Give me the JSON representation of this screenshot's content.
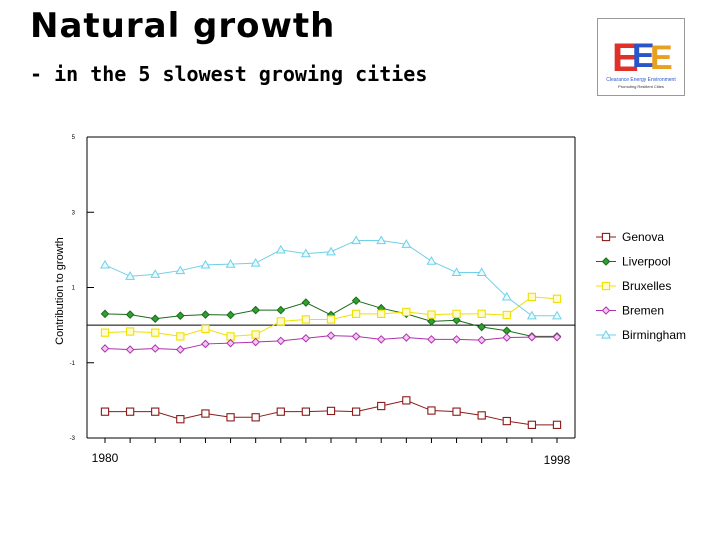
{
  "header": {
    "title": "Natural growth",
    "subtitle_bullet": "-",
    "subtitle": "in the 5 slowest growing cities"
  },
  "logo": {
    "icon": "eee-logo-icon",
    "line1": "Clearance Energy Environment",
    "line2": "Promoting Resilient Cities"
  },
  "colors": {
    "Genova": "#8b1a1a",
    "Liverpool": "#1a6b1a",
    "Bruxelles": "#f0e000",
    "Bremen": "#b030b0",
    "Birmingham": "#70d0e8"
  },
  "chart_data": {
    "type": "line",
    "title": "Natural growth",
    "subtitle": "in the 5 slowest growing cities",
    "ylabel": "Contribution to growth",
    "xlabel": "",
    "x": [
      1980,
      1981,
      1982,
      1983,
      1984,
      1985,
      1986,
      1987,
      1988,
      1989,
      1990,
      1991,
      1992,
      1993,
      1994,
      1995,
      1996,
      1997,
      1998
    ],
    "x_tick_labels": [
      "1980",
      "1998"
    ],
    "ylim": [
      -3,
      5
    ],
    "y_ticks": [
      5,
      3,
      1,
      -1,
      -3
    ],
    "y_tick_labels": [
      "5",
      "3",
      "1",
      "-1",
      "-3"
    ],
    "zero_line": 0,
    "legend_position": "right",
    "series": [
      {
        "name": "Genova",
        "marker": "square",
        "values": [
          -2.3,
          -2.3,
          -2.3,
          -2.5,
          -2.35,
          -2.45,
          -2.45,
          -2.3,
          -2.3,
          -2.28,
          -2.3,
          -2.15,
          -2.0,
          -2.27,
          -2.3,
          -2.4,
          -2.55,
          -2.65,
          -2.65
        ]
      },
      {
        "name": "Liverpool",
        "marker": "diamond",
        "values": [
          0.3,
          0.28,
          0.17,
          0.25,
          0.28,
          0.27,
          0.4,
          0.4,
          0.6,
          0.27,
          0.65,
          0.45,
          0.3,
          0.1,
          0.13,
          -0.05,
          -0.15,
          -0.3,
          -0.3
        ]
      },
      {
        "name": "Bruxelles",
        "marker": "square",
        "values": [
          -0.2,
          -0.17,
          -0.2,
          -0.3,
          -0.1,
          -0.3,
          -0.25,
          0.1,
          0.15,
          0.15,
          0.3,
          0.3,
          0.35,
          0.28,
          0.3,
          0.3,
          0.27,
          0.75,
          0.7
        ]
      },
      {
        "name": "Bremen",
        "marker": "diamond",
        "values": [
          -0.62,
          -0.65,
          -0.62,
          -0.65,
          -0.5,
          -0.48,
          -0.45,
          -0.42,
          -0.35,
          -0.28,
          -0.3,
          -0.38,
          -0.33,
          -0.38,
          -0.38,
          -0.4,
          -0.33,
          -0.32,
          -0.32
        ]
      },
      {
        "name": "Birmingham",
        "marker": "triangle",
        "values": [
          1.6,
          1.3,
          1.35,
          1.45,
          1.6,
          1.62,
          1.65,
          2.0,
          1.9,
          1.95,
          2.25,
          2.25,
          2.15,
          1.7,
          1.4,
          1.4,
          0.75,
          0.25,
          0.25
        ]
      }
    ]
  }
}
